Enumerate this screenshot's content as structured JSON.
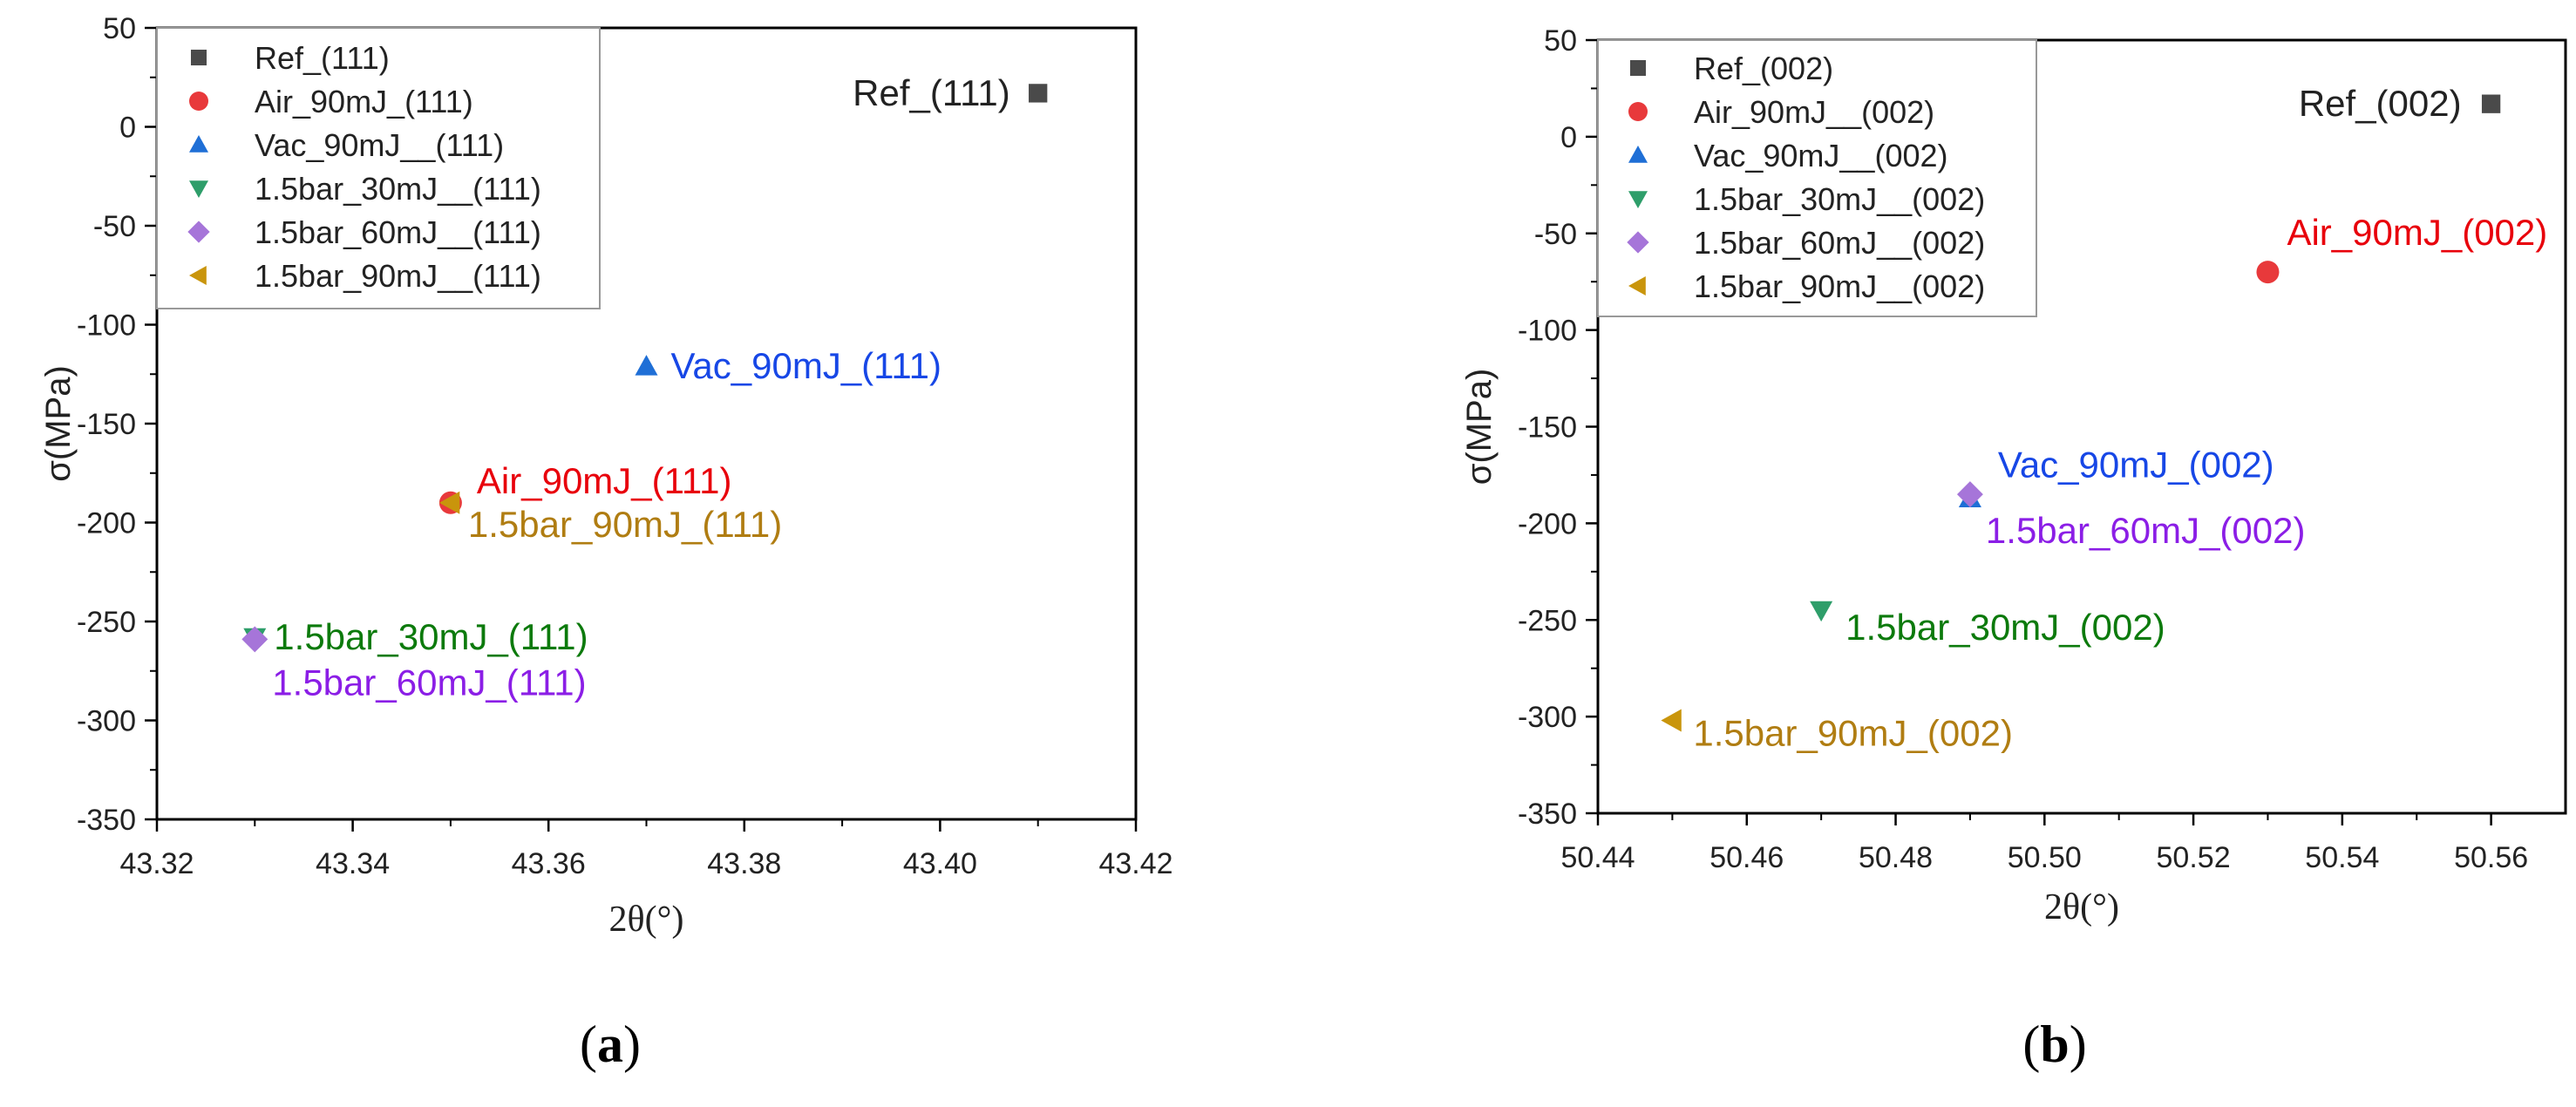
{
  "chart_data": [
    {
      "type": "scatter",
      "panel_caption": "(a)",
      "panel_letter": "a",
      "xlabel": "2θ(°)",
      "ylabel": "σ(MPa)",
      "xlim": [
        43.32,
        43.42
      ],
      "ylim": [
        -350,
        50
      ],
      "x_ticks": [
        "43.32",
        "43.34",
        "43.36",
        "43.38",
        "43.40",
        "43.42"
      ],
      "y_ticks": [
        "50",
        "0",
        "-50",
        "-100",
        "-150",
        "-200",
        "-250",
        "-300",
        "-350"
      ],
      "legend_position": "top-left",
      "series": [
        {
          "name": "Ref_(111)",
          "marker": "square",
          "color": "#4a4a4a",
          "x": 43.41,
          "y": 17,
          "label": "Ref_(111)",
          "label_color": "#222222"
        },
        {
          "name": "Air_90mJ_(111)",
          "marker": "circle",
          "color": "#e8393b",
          "x": 43.35,
          "y": -190,
          "label": "Air_90mJ_(111)",
          "label_color": "#e8000b"
        },
        {
          "name": "Vac_90mJ__(111)",
          "marker": "triangle-up",
          "color": "#1f6fd6",
          "x": 43.37,
          "y": -121,
          "label": "Vac_90mJ_(111)",
          "label_color": "#1747e6"
        },
        {
          "name": "1.5bar_30mJ__(111)",
          "marker": "triangle-down",
          "color": "#2e9e6a",
          "x": 43.33,
          "y": -258,
          "label": "1.5bar_30mJ_(111)",
          "label_color": "#0c7a0c"
        },
        {
          "name": "1.5bar_60mJ__(111)",
          "marker": "diamond",
          "color": "#a675d9",
          "x": 43.33,
          "y": -259,
          "label": "1.5bar_60mJ_(111)",
          "label_color": "#8b1ee6"
        },
        {
          "name": "1.5bar_90mJ__(111)",
          "marker": "triangle-left",
          "color": "#c9950c",
          "x": 43.35,
          "y": -190,
          "label": "1.5bar_90mJ_(111)",
          "label_color": "#b07d12"
        }
      ]
    },
    {
      "type": "scatter",
      "panel_caption": "(b)",
      "panel_letter": "b",
      "xlabel": "2θ(°)",
      "ylabel": "σ(MPa)",
      "xlim": [
        50.44,
        50.57
      ],
      "ylim": [
        -350,
        50
      ],
      "x_ticks": [
        "50.44",
        "50.46",
        "50.48",
        "50.50",
        "50.52",
        "50.54",
        "50.56"
      ],
      "y_ticks": [
        "50",
        "0",
        "-50",
        "-100",
        "-150",
        "-200",
        "-250",
        "-300",
        "-350"
      ],
      "legend_position": "top-left",
      "series": [
        {
          "name": "Ref_(002)",
          "marker": "square",
          "color": "#4a4a4a",
          "x": 50.56,
          "y": 17,
          "label": "Ref_(002)",
          "label_color": "#222222"
        },
        {
          "name": "Air_90mJ__(002)",
          "marker": "circle",
          "color": "#e8393b",
          "x": 50.53,
          "y": -70,
          "label": "Air_90mJ_(002)",
          "label_color": "#e8000b"
        },
        {
          "name": "Vac_90mJ__(002)",
          "marker": "triangle-up",
          "color": "#1f6fd6",
          "x": 50.49,
          "y": -187,
          "label": "Vac_90mJ_(002)",
          "label_color": "#1747e6"
        },
        {
          "name": "1.5bar_30mJ__(002)",
          "marker": "triangle-down",
          "color": "#2e9e6a",
          "x": 50.47,
          "y": -245,
          "label": "1.5bar_30mJ_(002)",
          "label_color": "#0c7a0c"
        },
        {
          "name": "1.5bar_60mJ__(002)",
          "marker": "diamond",
          "color": "#a675d9",
          "x": 50.49,
          "y": -185,
          "label": "1.5bar_60mJ_(002)",
          "label_color": "#8b1ee6"
        },
        {
          "name": "1.5bar_90mJ__(002)",
          "marker": "triangle-left",
          "color": "#c9950c",
          "x": 50.45,
          "y": -302,
          "label": "1.5bar_90mJ_(002)",
          "label_color": "#b07d12"
        }
      ]
    }
  ]
}
